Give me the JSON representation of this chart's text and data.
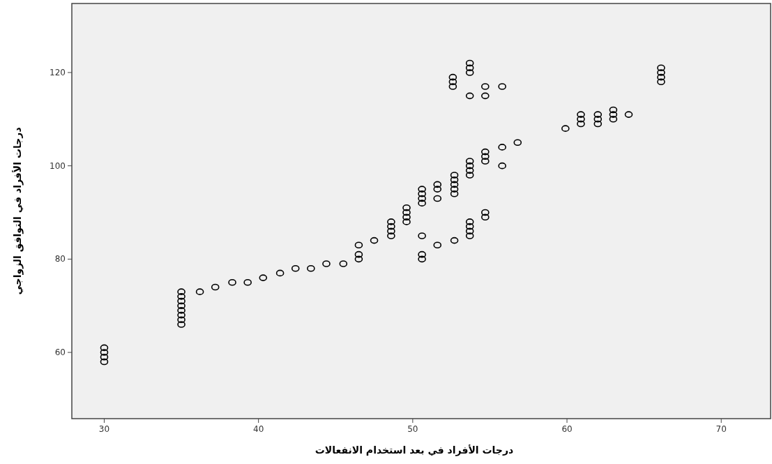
{
  "chart_data": {
    "type": "scatter",
    "xlabel": "درجات الأفراد في بعد استخدام الانفعالات",
    "ylabel": "درجات الأفراد في التوافق الزواجي",
    "xlim": [
      27.9,
      73.2
    ],
    "ylim": [
      45.8,
      134.8
    ],
    "xticks": [
      30,
      40,
      50,
      60,
      70
    ],
    "yticks": [
      60,
      80,
      100,
      120
    ],
    "grid": false,
    "marker": "circle",
    "series": [
      {
        "color": "#000000",
        "x": [
          30,
          30,
          30,
          30,
          35,
          35,
          35,
          35,
          35,
          35,
          35,
          35,
          36.2,
          37.2,
          38.3,
          39.3,
          40.3,
          41.4,
          42.4,
          43.4,
          44.4,
          45.5,
          46.5,
          46.5,
          46.5,
          47.5,
          48.6,
          48.6,
          48.6,
          48.6,
          49.6,
          49.6,
          49.6,
          49.6,
          50.6,
          50.6,
          50.6,
          50.6,
          50.6,
          50.6,
          50.6,
          51.6,
          51.6,
          51.6,
          51.6,
          52.7,
          52.7,
          52.7,
          52.7,
          52.7,
          52.7,
          52.6,
          52.6,
          52.6,
          53.7,
          53.7,
          53.7,
          53.7,
          53.7,
          53.7,
          53.7,
          53.7,
          53.7,
          53.7,
          53.7,
          53.7,
          54.7,
          54.7,
          54.7,
          54.7,
          54.7,
          54.7,
          54.7,
          55.8,
          55.8,
          55.8,
          56.8,
          59.9,
          60.9,
          60.9,
          60.9,
          62,
          62,
          62,
          63,
          63,
          63,
          64,
          66.1,
          66.1,
          66.1,
          66.1
        ],
        "values": [
          58,
          59,
          60,
          61,
          66,
          67,
          68,
          69,
          70,
          71,
          72,
          73,
          73,
          74,
          75,
          75,
          76,
          77,
          78,
          78,
          79,
          79,
          80,
          81,
          83,
          84,
          85,
          86,
          87,
          88,
          88,
          89,
          90,
          91,
          92,
          93,
          94,
          95,
          85,
          80,
          81,
          95,
          96,
          93,
          83,
          94,
          95,
          96,
          97,
          98,
          84,
          117,
          118,
          119,
          98,
          99,
          100,
          101,
          85,
          86,
          87,
          88,
          120,
          121,
          122,
          115,
          101,
          102,
          103,
          89,
          90,
          117,
          115,
          104,
          100,
          117,
          105,
          108,
          109,
          110,
          111,
          109,
          110,
          111,
          110,
          111,
          112,
          111,
          118,
          119,
          120,
          121
        ]
      }
    ]
  }
}
